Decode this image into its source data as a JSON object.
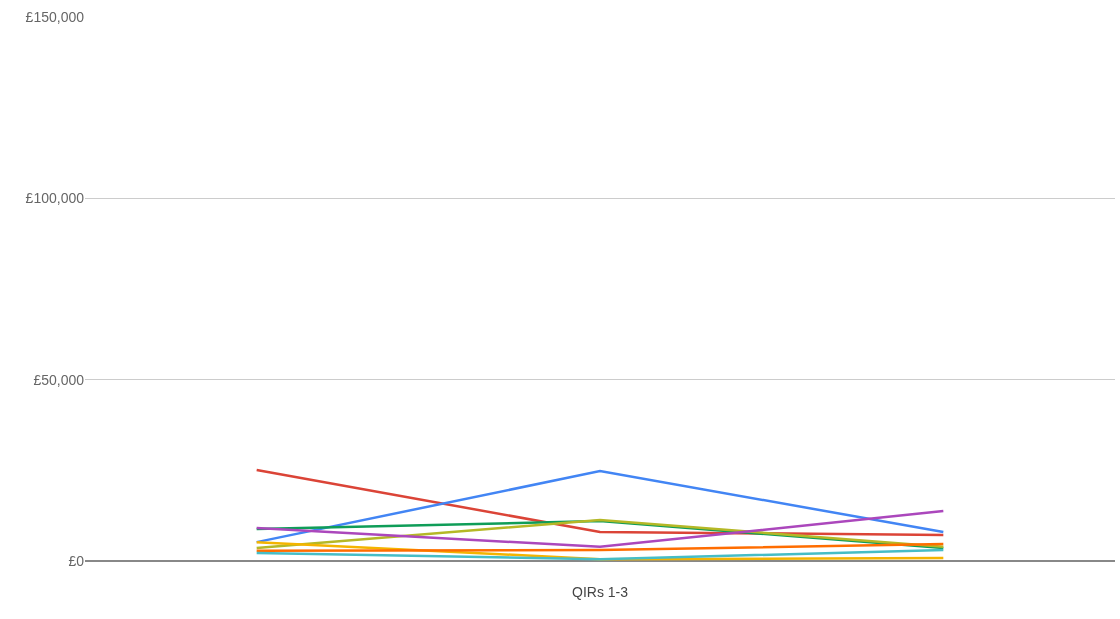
{
  "chart_data": {
    "type": "line",
    "categories": [
      null,
      "QIRs 1-3",
      null
    ],
    "series": [
      {
        "color": "#db4437",
        "values": [
          25100,
          8000,
          7200
        ]
      },
      {
        "color": "#4285f4",
        "values": [
          5200,
          24800,
          8000
        ]
      },
      {
        "color": "#0f9d58",
        "values": [
          8800,
          11000,
          3600
        ]
      },
      {
        "color": "#b5b826",
        "values": [
          3600,
          11300,
          3900
        ]
      },
      {
        "color": "#ab47bc",
        "values": [
          9100,
          3900,
          13800
        ]
      },
      {
        "color": "#f4b400",
        "values": [
          5200,
          500,
          800
        ]
      },
      {
        "color": "#ff6d00",
        "values": [
          2800,
          3000,
          4700
        ]
      },
      {
        "color": "#46bdc6",
        "values": [
          2200,
          500,
          3000
        ]
      }
    ],
    "ylim": [
      0,
      150000
    ],
    "yticks": [
      {
        "value": 0,
        "label": "£0"
      },
      {
        "value": 50000,
        "label": "£50,000"
      },
      {
        "value": 100000,
        "label": "£100,000"
      },
      {
        "value": 150000,
        "label": "£150,000"
      }
    ],
    "grid": "y",
    "marker": "none",
    "line_style": "solid"
  }
}
